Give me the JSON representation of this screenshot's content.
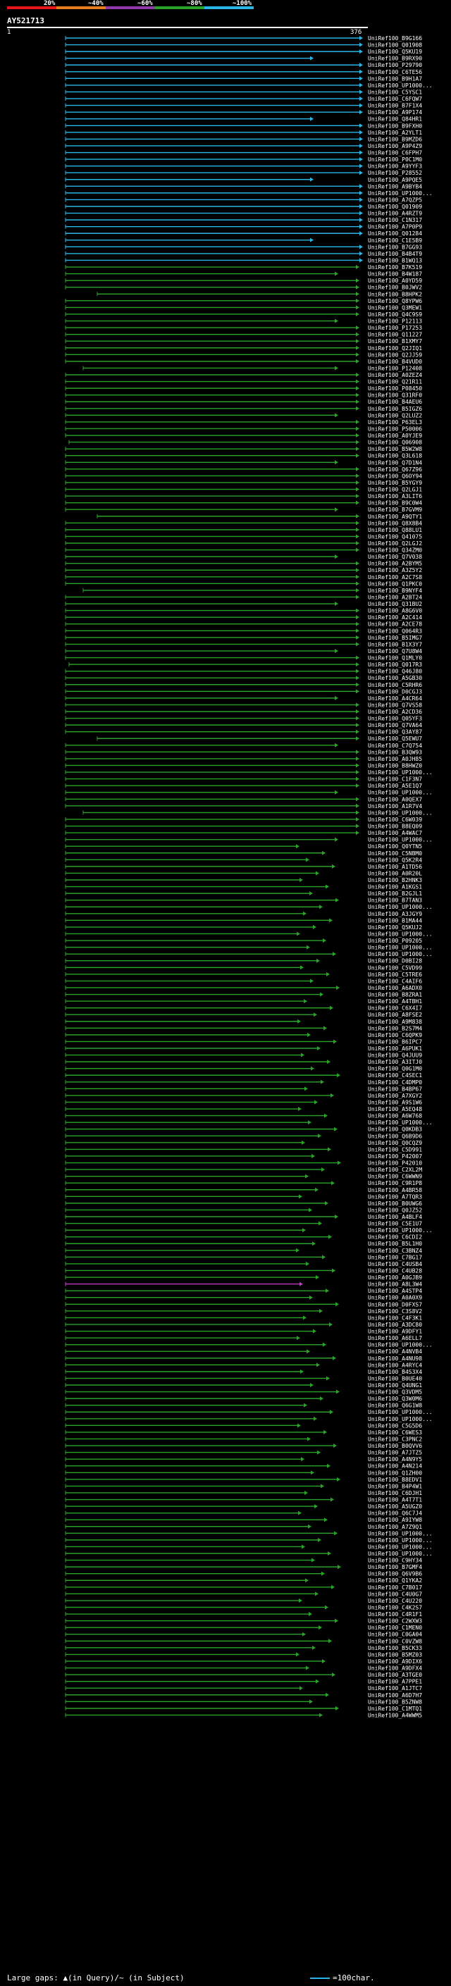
{
  "scale": {
    "labels": [
      "20%",
      "~40%",
      "~60%",
      "~80%",
      "~100%"
    ],
    "colors": [
      "#e8141c",
      "#e77e1b",
      "#8f3aa8",
      "#2aa22a",
      "#29b6e6"
    ]
  },
  "query": {
    "id": "AY521713",
    "start": "1",
    "end": "376"
  },
  "footer": {
    "gaps_text": "Large gaps: ▲(in Query)/~ (in Subject)",
    "legend_text": "=100char."
  },
  "hits": [
    "UniRef100_B9G166",
    "UniRef100_Q01908",
    "UniRef100_Q5KU19",
    "UniRef100_B9RX90",
    "UniRef100_P29790",
    "UniRef100_C6TE56",
    "UniRef100_B9H1A7",
    "UniRef100_UP1000...",
    "UniRef100_C5YSC1",
    "UniRef100_C6FQW7",
    "UniRef100_B7F1X4",
    "UniRef100_A9P174",
    "UniRef100_Q84HR1",
    "UniRef100_B9FXH0",
    "UniRef100_A2YLT1",
    "UniRef100_B9MZD6",
    "UniRef100_A9P4Z9",
    "UniRef100_C6FPH7",
    "UniRef100_P0C1M0",
    "UniRef100_A9YYF3",
    "UniRef100_P28552",
    "UniRef100_A9PQE5",
    "UniRef100_A9BYB4",
    "UniRef100_UP1000...",
    "UniRef100_A7QZP5",
    "UniRef100_Q01909",
    "UniRef100_A4RZT9",
    "UniRef100_C1N317",
    "UniRef100_A7P0P9",
    "UniRef100_Q01284",
    "UniRef100_C1E5B9",
    "UniRef100_B7GG93",
    "UniRef100_B4B4T9",
    "UniRef100_B1WQ13",
    "UniRef100_B7K519",
    "UniRef100_B4W187",
    "UniRef100_A0YD59",
    "UniRef100_B0JWV2",
    "UniRef100_B8HPK2",
    "UniRef100_Q8YPW6",
    "UniRef100_Q3MEW1",
    "UniRef100_Q4C9S9",
    "UniRef100_P12113",
    "UniRef100_P17253",
    "UniRef100_Q11227",
    "UniRef100_B1XMY7",
    "UniRef100_Q2JIQ1",
    "UniRef100_Q2JJ59",
    "UniRef100_B4VUD0",
    "UniRef100_P12408",
    "UniRef100_A0ZEZ4",
    "UniRef100_Q21R11",
    "UniRef100_P08450",
    "UniRef100_Q31RF0",
    "UniRef100_B4AEU6",
    "UniRef100_B5IGZ6",
    "UniRef100_Q2LUZ2",
    "UniRef100_P63EL3",
    "UniRef100_P50006",
    "UniRef100_A0YJE9",
    "UniRef100_Q06908",
    "UniRef100_B5W2W8",
    "UniRef100_Q3L618",
    "UniRef100_Q7D1N4",
    "UniRef100_Q67Z96",
    "UniRef100_Q6OY94",
    "UniRef100_B5YGY9",
    "UniRef100_Q2LGJ1",
    "UniRef100_A3LIT6",
    "UniRef100_B9C0W4",
    "UniRef100_B7GVM9",
    "UniRef100_A9QTY1",
    "UniRef100_Q8X8B4",
    "UniRef100_Q88LU1",
    "UniRef100_Q41075",
    "UniRef100_Q2LGJ2",
    "UniRef100_Q34ZM0",
    "UniRef100_Q7V038",
    "UniRef100_A2BYM5",
    "UniRef100_A3Z5Y2",
    "UniRef100_A2C7S8",
    "UniRef100_Q1PKC0",
    "UniRef100_B9NYF4",
    "UniRef100_A2BT24",
    "UniRef100_Q31BU2",
    "UniRef100_A8G6V0",
    "UniRef100_A2C414",
    "UniRef100_A2CE78",
    "UniRef100_Q064R3",
    "UniRef100_B5IMG7",
    "UniRef100_B1X3Y7",
    "UniRef100_Q7U8W4",
    "UniRef100_Q1MLY0",
    "UniRef100_Q017R3",
    "UniRef100_Q46J80",
    "UniRef100_A5GB30",
    "UniRef100_C5RHR6",
    "UniRef100_D0CGJ3",
    "UniRef100_A4CR64",
    "UniRef100_Q7VS58",
    "UniRef100_A2CD36",
    "UniRef100_Q05YF3",
    "UniRef100_Q7VA64",
    "UniRef100_Q3AY87",
    "UniRef100_Q5EWU7",
    "UniRef100_C7Q754",
    "UniRef100_B3QW93",
    "UniRef100_A0JH85",
    "UniRef100_B8HWZ0",
    "UniRef100_UP1000...",
    "UniRef100_C1F3N7",
    "UniRef100_A5E1Q7",
    "UniRef100_UP1000...",
    "UniRef100_A0QEX7",
    "UniRef100_A1R7V4",
    "UniRef100_UP1000...",
    "UniRef100_C6W039",
    "UniRef100_B8EQ09",
    "UniRef100_A4WAC7",
    "UniRef100_UP1000...",
    "UniRef100_Q0YTN5",
    "UniRef100_C5NBM0",
    "UniRef100_Q5K2R4",
    "UniRef100_A1TD56",
    "UniRef100_A0R20L",
    "UniRef100_B2HNK3",
    "UniRef100_A1KGS1",
    "UniRef100_B2GJL1",
    "UniRef100_B7TAN3",
    "UniRef100_UP1000...",
    "UniRef100_A3JGY9",
    "UniRef100_B1MA44",
    "UniRef100_Q5KUJ2",
    "UniRef100_UP1000...",
    "UniRef100_P09205",
    "UniRef100_UP1000...",
    "UniRef100_UP1000...",
    "UniRef100_D0BI28",
    "UniRef100_C5VD99",
    "UniRef100_C5TRE6",
    "UniRef100_C4AIF6",
    "UniRef100_A6ADX0",
    "UniRef100_B8ZRA1",
    "UniRef100_A4TBH1",
    "UniRef100_C6X4I7",
    "UniRef100_A8FSE2",
    "UniRef100_A9M838",
    "UniRef100_B2S7M4",
    "UniRef100_C6QPK9",
    "UniRef100_B6IPC7",
    "UniRef100_A6PUK1",
    "UniRef100_Q4JUU9",
    "UniRef100_A3ITJ0",
    "UniRef100_Q0G1M0",
    "UniRef100_C4SEC1",
    "UniRef100_C4DMP0",
    "UniRef100_B4BP67",
    "UniRef100_A7XGY2",
    "UniRef100_A9S1W6",
    "UniRef100_A5EQ48",
    "UniRef100_A6W768",
    "UniRef100_UP1000...",
    "UniRef100_Q0KDB3",
    "UniRef100_Q6B9D6",
    "UniRef100_Q0CQZ9",
    "UniRef100_C5D991",
    "UniRef100_P42007",
    "UniRef100_P42010",
    "UniRef100_C2XL2M",
    "UniRef100_C6WWN9",
    "UniRef100_C9R1P8",
    "UniRef100_A4BR58",
    "UniRef100_A7TQR3",
    "UniRef100_B0UWG6",
    "UniRef100_Q0JZ52",
    "UniRef100_A4BLF4",
    "UniRef100_C5E1U7",
    "UniRef100_UP1000...",
    "UniRef100_C6CDI2",
    "UniRef100_B5L1H0",
    "UniRef100_C3BNZ4",
    "UniRef100_C7BG17",
    "UniRef100_C4USB4",
    "UniRef100_C4UB28",
    "UniRef100_A0GJB9",
    "UniRef100_A8L3W4",
    "UniRef100_A4STP4",
    "UniRef100_A0A0X9",
    "UniRef100_D0FXS7",
    "UniRef100_C3S8V2",
    "UniRef100_C4F3K1",
    "UniRef100_A3DC80",
    "UniRef100_A9DFY1",
    "UniRef100_A6ELL7",
    "UniRef100_UP1000...",
    "UniRef100_A4NVB4",
    "UniRef100_A4NU98",
    "UniRef100_A4RYC4",
    "UniRef100_B4S3X4",
    "UniRef100_B0UE40",
    "UniRef100_Q4UNG1",
    "UniRef100_Q3VDM5",
    "UniRef100_Q3W0M6",
    "UniRef100_Q6G1W8",
    "UniRef100_UP1000...",
    "UniRef100_UP1000...",
    "UniRef100_C5G5D6",
    "UniRef100_C6WES3",
    "UniRef100_C3PNC2",
    "UniRef100_B0QVV6",
    "UniRef100_A7JTZ5",
    "UniRef100_A4N9Y5",
    "UniRef100_A4N214",
    "UniRef100_Q1ZH00",
    "UniRef100_B8EDV1",
    "UniRef100_B4P4W1",
    "UniRef100_C6DJH1",
    "UniRef100_A4T7T1",
    "UniRef100_A5UGZ0",
    "UniRef100_Q6C7J4",
    "UniRef100_A9IYW8",
    "UniRef100_A7Z9Q1",
    "UniRef100_UP1000...",
    "UniRef100_UP1000...",
    "UniRef100_UP1000...",
    "UniRef100_UP1000...",
    "UniRef100_C9HY34",
    "UniRef100_B7GMF4",
    "UniRef100_Q6V9B6",
    "UniRef100_Q1YKA2",
    "UniRef100_C7B017",
    "UniRef100_C4U0G7",
    "UniRef100_C4U220",
    "UniRef100_C4K2S7",
    "UniRef100_C4R1F1",
    "UniRef100_C2WXW3",
    "UniRef100_C1MEN0",
    "UniRef100_C0GA04",
    "UniRef100_C0VZW8",
    "UniRef100_B5CK33",
    "UniRef100_B5MZ03",
    "UniRef100_A9DIX6",
    "UniRef100_A9DFX4",
    "UniRef100_A3TGE0",
    "UniRef100_A7PPE1",
    "UniRef100_A1JTC7",
    "UniRef100_A6D7H7",
    "UniRef100_B5ZNW8",
    "UniRef100_C1MTQ1",
    "UniRef100_A4WWM5"
  ]
}
